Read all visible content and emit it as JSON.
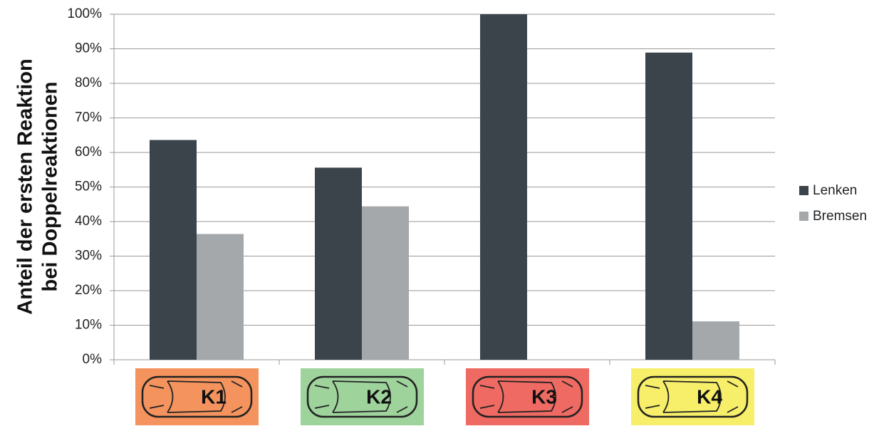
{
  "chart_data": {
    "type": "bar",
    "ylabel": [
      "Anteil der ersten Reaktion",
      "bei Doppelreaktionen"
    ],
    "categories": [
      "K1",
      "K2",
      "K3",
      "K4"
    ],
    "category_colors": [
      "#f4935e",
      "#9ed39c",
      "#ef6a62",
      "#f7ef6a"
    ],
    "series": [
      {
        "name": "Lenken",
        "color": "#3c444b",
        "values": [
          63.6,
          55.6,
          100,
          88.9
        ]
      },
      {
        "name": "Bremsen",
        "color": "#a4a8aa",
        "values": [
          36.4,
          44.4,
          0,
          11.1
        ]
      }
    ],
    "ylim": [
      0,
      100
    ],
    "yticks": [
      {
        "value": 0,
        "label": "0%"
      },
      {
        "value": 10,
        "label": "10%"
      },
      {
        "value": 20,
        "label": "20%"
      },
      {
        "value": 30,
        "label": "30%"
      },
      {
        "value": 40,
        "label": "40%"
      },
      {
        "value": 50,
        "label": "50%"
      },
      {
        "value": 60,
        "label": "60%"
      },
      {
        "value": 70,
        "label": "70%"
      },
      {
        "value": 80,
        "label": "80%"
      },
      {
        "value": 90,
        "label": "90%"
      },
      {
        "value": 100,
        "label": "100%"
      }
    ],
    "grid": true,
    "legend": "right"
  }
}
